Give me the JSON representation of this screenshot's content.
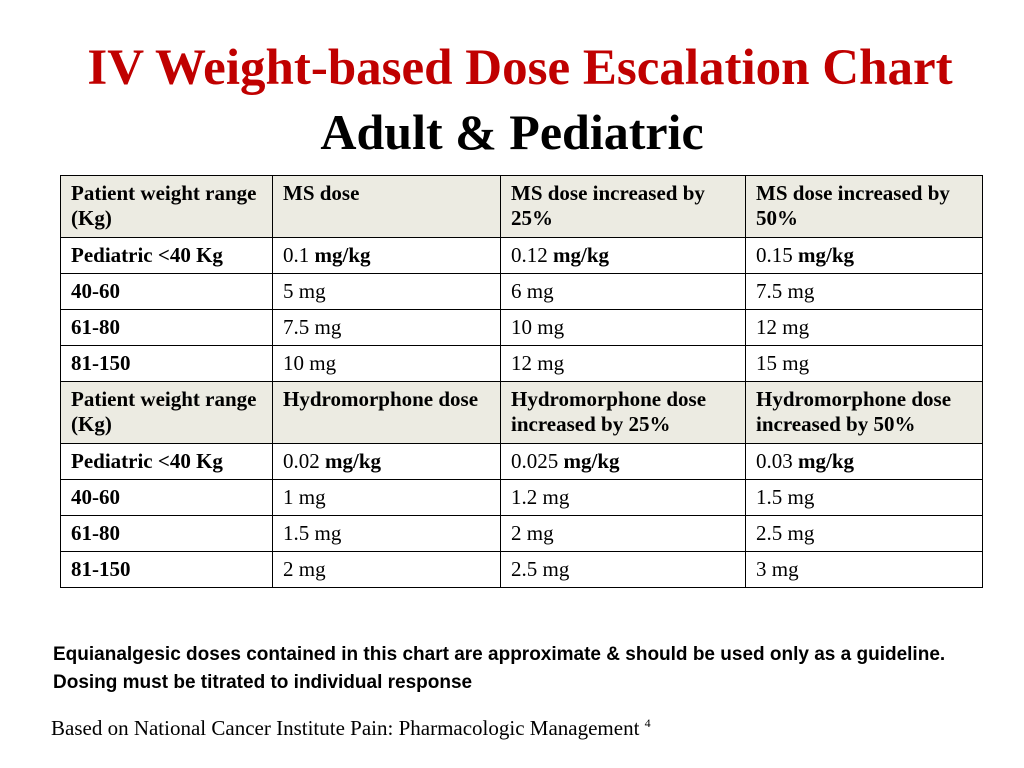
{
  "title": "IV Weight-based Dose Escalation Chart",
  "subtitle": "Adult & Pediatric",
  "table": {
    "ms_header": {
      "c0": "Patient weight range (Kg)",
      "c1": "MS dose",
      "c2": "MS dose increased by 25%",
      "c3": "MS dose increased by 50%"
    },
    "ms_rows": [
      {
        "c0": "Pediatric <40 Kg",
        "c1_num": "0.1",
        "c1_unit": "mg/kg",
        "c2_num": "0.12",
        "c2_unit": "mg/kg",
        "c3_num": "0.15",
        "c3_unit": "mg/kg"
      },
      {
        "c0": "40-60",
        "c1": "5 mg",
        "c2": "6 mg",
        "c3": "7.5 mg"
      },
      {
        "c0": "61-80",
        "c1": "7.5 mg",
        "c2": "10 mg",
        "c3": "12 mg"
      },
      {
        "c0": "81-150",
        "c1": "10 mg",
        "c2": "12 mg",
        "c3": "15 mg"
      }
    ],
    "hm_header": {
      "c0": "Patient weight range (Kg)",
      "c1": "Hydromorphone dose",
      "c2": "Hydromorphone dose increased by 25%",
      "c3": "Hydromorphone dose increased by 50%"
    },
    "hm_rows": [
      {
        "c0": "Pediatric <40 Kg",
        "c1_num": "0.02",
        "c1_unit": "mg/kg",
        "c2_num": "0.025",
        "c2_unit": "mg/kg",
        "c3_num": "0.03",
        "c3_unit": "mg/kg"
      },
      {
        "c0": "40-60",
        "c1": "1 mg",
        "c2": "1.2 mg",
        "c3": "1.5 mg"
      },
      {
        "c0": "61-80",
        "c1": "1.5 mg",
        "c2": "2 mg",
        "c3": "2.5 mg"
      },
      {
        "c0": "81-150",
        "c1": "2 mg",
        "c2": "2.5 mg",
        "c3": "3 mg"
      }
    ]
  },
  "note": "Equianalgesic doses contained in this chart are approximate & should be used only as a guideline. Dosing must be titrated to individual response",
  "source": {
    "text": "Based on National Cancer Institute Pain: Pharmacologic Management",
    "footnote": "4"
  },
  "colors": {
    "title": "#c00000",
    "header_fill": "#ecebe2"
  }
}
